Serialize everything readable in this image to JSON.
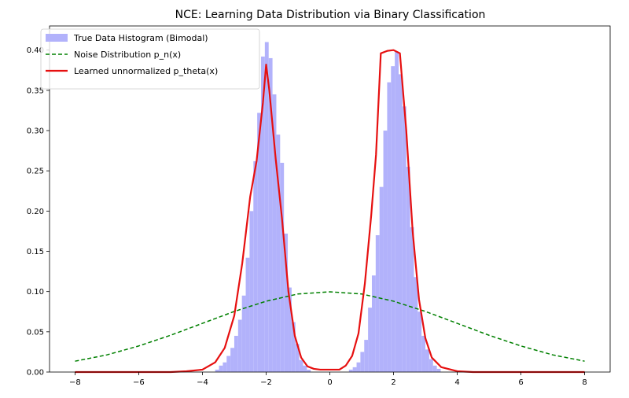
{
  "chart_data": {
    "type": "histogram+line",
    "title": "NCE: Learning Data Distribution via Binary Classification",
    "xlabel": "",
    "ylabel": "",
    "xlim": [
      -8.8,
      8.8
    ],
    "ylim": [
      0,
      0.43
    ],
    "xticks": [
      -8,
      -6,
      -4,
      -2,
      0,
      2,
      4,
      6,
      8
    ],
    "yticks": [
      0.0,
      0.05,
      0.1,
      0.15,
      0.2,
      0.25,
      0.3,
      0.35,
      0.4
    ],
    "grid": false,
    "legend": {
      "placement": "top-left",
      "entries": [
        {
          "label": "True Data Histogram (Bimodal)",
          "kind": "patch",
          "color": "#b2b2fb"
        },
        {
          "label": "Noise Distribution p_n(x)",
          "kind": "dashed",
          "color": "#008000"
        },
        {
          "label": "Learned unnormalized p_theta(x)",
          "kind": "solid",
          "color": "#e61010"
        }
      ]
    },
    "histogram": {
      "name": "True Data Histogram (Bimodal)",
      "color": "#b2b2fb",
      "bins": [
        {
          "x0": -3.6,
          "x1": -3.48,
          "y": 0.003
        },
        {
          "x0": -3.48,
          "x1": -3.36,
          "y": 0.008
        },
        {
          "x0": -3.36,
          "x1": -3.24,
          "y": 0.012
        },
        {
          "x0": -3.24,
          "x1": -3.12,
          "y": 0.02
        },
        {
          "x0": -3.12,
          "x1": -3.0,
          "y": 0.03
        },
        {
          "x0": -3.0,
          "x1": -2.88,
          "y": 0.045
        },
        {
          "x0": -2.88,
          "x1": -2.76,
          "y": 0.065
        },
        {
          "x0": -2.76,
          "x1": -2.64,
          "y": 0.095
        },
        {
          "x0": -2.64,
          "x1": -2.52,
          "y": 0.142
        },
        {
          "x0": -2.52,
          "x1": -2.4,
          "y": 0.2
        },
        {
          "x0": -2.4,
          "x1": -2.28,
          "y": 0.262
        },
        {
          "x0": -2.28,
          "x1": -2.16,
          "y": 0.322
        },
        {
          "x0": -2.16,
          "x1": -2.04,
          "y": 0.392
        },
        {
          "x0": -2.04,
          "x1": -1.92,
          "y": 0.41
        },
        {
          "x0": -1.92,
          "x1": -1.8,
          "y": 0.39
        },
        {
          "x0": -1.8,
          "x1": -1.68,
          "y": 0.345
        },
        {
          "x0": -1.68,
          "x1": -1.56,
          "y": 0.295
        },
        {
          "x0": -1.56,
          "x1": -1.44,
          "y": 0.26
        },
        {
          "x0": -1.44,
          "x1": -1.32,
          "y": 0.172
        },
        {
          "x0": -1.32,
          "x1": -1.2,
          "y": 0.105
        },
        {
          "x0": -1.2,
          "x1": -1.08,
          "y": 0.062
        },
        {
          "x0": -1.08,
          "x1": -0.96,
          "y": 0.035
        },
        {
          "x0": -0.96,
          "x1": -0.84,
          "y": 0.015
        },
        {
          "x0": -0.84,
          "x1": -0.72,
          "y": 0.008
        },
        {
          "x0": -0.72,
          "x1": -0.6,
          "y": 0.003
        },
        {
          "x0": 0.6,
          "x1": 0.72,
          "y": 0.003
        },
        {
          "x0": 0.72,
          "x1": 0.84,
          "y": 0.006
        },
        {
          "x0": 0.84,
          "x1": 0.96,
          "y": 0.012
        },
        {
          "x0": 0.96,
          "x1": 1.08,
          "y": 0.025
        },
        {
          "x0": 1.08,
          "x1": 1.2,
          "y": 0.04
        },
        {
          "x0": 1.2,
          "x1": 1.32,
          "y": 0.08
        },
        {
          "x0": 1.32,
          "x1": 1.44,
          "y": 0.12
        },
        {
          "x0": 1.44,
          "x1": 1.56,
          "y": 0.17
        },
        {
          "x0": 1.56,
          "x1": 1.68,
          "y": 0.23
        },
        {
          "x0": 1.68,
          "x1": 1.8,
          "y": 0.3
        },
        {
          "x0": 1.8,
          "x1": 1.92,
          "y": 0.36
        },
        {
          "x0": 1.92,
          "x1": 2.04,
          "y": 0.38
        },
        {
          "x0": 2.04,
          "x1": 2.16,
          "y": 0.398
        },
        {
          "x0": 2.16,
          "x1": 2.28,
          "y": 0.37
        },
        {
          "x0": 2.28,
          "x1": 2.4,
          "y": 0.33
        },
        {
          "x0": 2.4,
          "x1": 2.52,
          "y": 0.255
        },
        {
          "x0": 2.52,
          "x1": 2.64,
          "y": 0.18
        },
        {
          "x0": 2.64,
          "x1": 2.76,
          "y": 0.118
        },
        {
          "x0": 2.76,
          "x1": 2.88,
          "y": 0.075
        },
        {
          "x0": 2.88,
          "x1": 3.0,
          "y": 0.045
        },
        {
          "x0": 3.0,
          "x1": 3.12,
          "y": 0.028
        },
        {
          "x0": 3.12,
          "x1": 3.24,
          "y": 0.016
        },
        {
          "x0": 3.24,
          "x1": 3.36,
          "y": 0.008
        },
        {
          "x0": 3.36,
          "x1": 3.48,
          "y": 0.004
        }
      ]
    },
    "series": [
      {
        "name": "Noise Distribution p_n(x)",
        "style": "dashed",
        "color": "#008000",
        "x": [
          -8,
          -7,
          -6,
          -5,
          -4,
          -3,
          -2,
          -1,
          0,
          1,
          2,
          3,
          4,
          5,
          6,
          7,
          8
        ],
        "y": [
          0.0135,
          0.0213,
          0.0324,
          0.0457,
          0.0605,
          0.0753,
          0.088,
          0.097,
          0.0997,
          0.097,
          0.088,
          0.0753,
          0.0605,
          0.0457,
          0.0324,
          0.0213,
          0.0135
        ]
      },
      {
        "name": "Learned unnormalized p_theta(x)",
        "style": "solid",
        "color": "#e61010",
        "x": [
          -8,
          -5,
          -4.5,
          -4,
          -3.6,
          -3.3,
          -3.0,
          -2.75,
          -2.5,
          -2.3,
          -2.1,
          -2.0,
          -1.9,
          -1.7,
          -1.5,
          -1.3,
          -1.1,
          -0.9,
          -0.7,
          -0.5,
          -0.3,
          0,
          0.3,
          0.5,
          0.7,
          0.9,
          1.1,
          1.3,
          1.45,
          1.6,
          1.8,
          2.0,
          2.2,
          2.4,
          2.6,
          2.8,
          3.0,
          3.2,
          3.5,
          4.0,
          4.5,
          5,
          8
        ],
        "y": [
          0.0,
          0.0,
          0.001,
          0.003,
          0.012,
          0.03,
          0.07,
          0.135,
          0.218,
          0.262,
          0.335,
          0.382,
          0.35,
          0.265,
          0.19,
          0.1,
          0.045,
          0.018,
          0.007,
          0.004,
          0.003,
          0.003,
          0.003,
          0.008,
          0.02,
          0.048,
          0.11,
          0.195,
          0.27,
          0.396,
          0.399,
          0.4,
          0.396,
          0.3,
          0.175,
          0.09,
          0.042,
          0.018,
          0.006,
          0.001,
          0.0,
          0.0,
          0.0
        ]
      }
    ]
  }
}
